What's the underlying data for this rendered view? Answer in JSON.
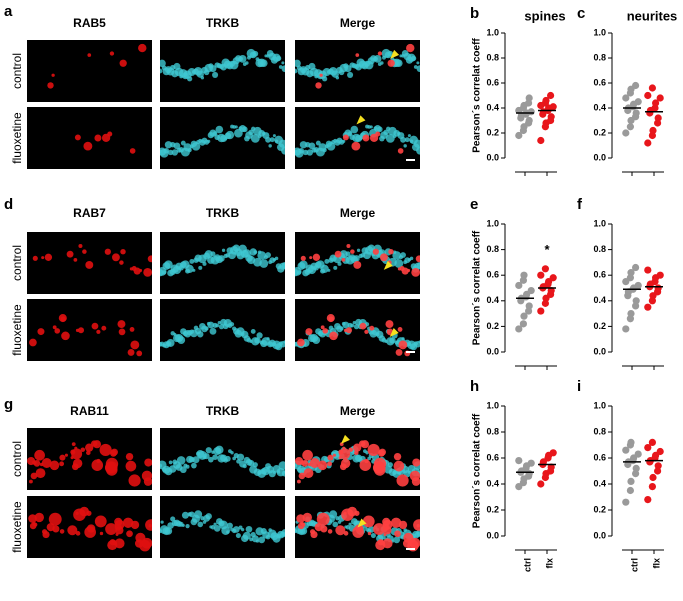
{
  "images": [
    {
      "letter": "a",
      "marker": "RAB5",
      "channel2": "TRKB",
      "merge": "Merge",
      "rows": [
        "control",
        "fluoxetine"
      ]
    },
    {
      "letter": "d",
      "marker": "RAB7",
      "channel2": "TRKB",
      "merge": "Merge",
      "rows": [
        "control",
        "fluoxetine"
      ]
    },
    {
      "letter": "g",
      "marker": "RAB11",
      "channel2": "TRKB",
      "merge": "Merge",
      "rows": [
        "control",
        "fluoxetine"
      ]
    }
  ],
  "charts": [
    {
      "letter": "b",
      "type": "scatter",
      "title": "spines",
      "ylabel": "Pearson´s correlat coeff",
      "categories": [
        null,
        null
      ],
      "ylim": [
        0,
        1
      ],
      "yticks": [
        {
          "value": 0,
          "label": "0.0"
        },
        {
          "value": 0.2,
          "label": "0.2"
        },
        {
          "value": 0.4,
          "label": "0.4"
        },
        {
          "value": 0.6,
          "label": "0.6"
        },
        {
          "value": 0.8,
          "label": "0.8"
        },
        {
          "value": 1,
          "label": "1.0"
        }
      ],
      "series": [
        {
          "color": "#9a9a9a",
          "median": 0.36,
          "values": [
            0.18,
            0.22,
            0.25,
            0.28,
            0.3,
            0.32,
            0.34,
            0.35,
            0.36,
            0.37,
            0.38,
            0.4,
            0.42,
            0.44,
            0.48
          ]
        },
        {
          "color": "#e8161b",
          "median": 0.38,
          "values": [
            0.14,
            0.25,
            0.28,
            0.3,
            0.33,
            0.35,
            0.37,
            0.38,
            0.4,
            0.41,
            0.42,
            0.44,
            0.46,
            0.5
          ]
        }
      ]
    },
    {
      "letter": "c",
      "type": "scatter",
      "title": "neurites",
      "categories": [
        null,
        null
      ],
      "ylim": [
        0,
        1
      ],
      "yticks": [
        {
          "value": 0,
          "label": "0.0"
        },
        {
          "value": 0.2,
          "label": "0.2"
        },
        {
          "value": 0.4,
          "label": "0.4"
        },
        {
          "value": 0.6,
          "label": "0.6"
        },
        {
          "value": 0.8,
          "label": "0.8"
        },
        {
          "value": 1,
          "label": "1.0"
        }
      ],
      "series": [
        {
          "color": "#9a9a9a",
          "median": 0.4,
          "values": [
            0.2,
            0.25,
            0.3,
            0.33,
            0.36,
            0.38,
            0.4,
            0.41,
            0.43,
            0.45,
            0.48,
            0.52,
            0.55,
            0.58
          ]
        },
        {
          "color": "#e8161b",
          "median": 0.37,
          "values": [
            0.12,
            0.18,
            0.22,
            0.28,
            0.32,
            0.36,
            0.38,
            0.4,
            0.44,
            0.48,
            0.5,
            0.56
          ]
        }
      ]
    },
    {
      "letter": "e",
      "type": "scatter",
      "ylabel": "Pearson´s correlat coeff",
      "annotation": "*",
      "categories": [
        null,
        null
      ],
      "ylim": [
        0,
        1
      ],
      "yticks": [
        {
          "value": 0,
          "label": "0.0"
        },
        {
          "value": 0.2,
          "label": "0.2"
        },
        {
          "value": 0.4,
          "label": "0.4"
        },
        {
          "value": 0.6,
          "label": "0.6"
        },
        {
          "value": 0.8,
          "label": "0.8"
        },
        {
          "value": 1,
          "label": "1.0"
        }
      ],
      "series": [
        {
          "color": "#9a9a9a",
          "median": 0.42,
          "values": [
            0.18,
            0.22,
            0.28,
            0.32,
            0.36,
            0.4,
            0.42,
            0.43,
            0.45,
            0.48,
            0.52,
            0.56,
            0.6
          ]
        },
        {
          "color": "#e8161b",
          "median": 0.5,
          "values": [
            0.32,
            0.38,
            0.42,
            0.45,
            0.48,
            0.5,
            0.51,
            0.53,
            0.55,
            0.58,
            0.6,
            0.65
          ]
        }
      ]
    },
    {
      "letter": "f",
      "type": "scatter",
      "categories": [
        null,
        null
      ],
      "ylim": [
        0,
        1
      ],
      "yticks": [
        {
          "value": 0,
          "label": "0.0"
        },
        {
          "value": 0.2,
          "label": "0.2"
        },
        {
          "value": 0.4,
          "label": "0.4"
        },
        {
          "value": 0.6,
          "label": "0.6"
        },
        {
          "value": 0.8,
          "label": "0.8"
        },
        {
          "value": 1,
          "label": "1.0"
        }
      ],
      "series": [
        {
          "color": "#9a9a9a",
          "median": 0.49,
          "values": [
            0.18,
            0.26,
            0.3,
            0.36,
            0.4,
            0.44,
            0.47,
            0.49,
            0.5,
            0.52,
            0.55,
            0.58,
            0.62,
            0.66
          ]
        },
        {
          "color": "#e8161b",
          "median": 0.51,
          "values": [
            0.35,
            0.4,
            0.44,
            0.47,
            0.5,
            0.51,
            0.53,
            0.55,
            0.58,
            0.6,
            0.64
          ]
        }
      ]
    },
    {
      "letter": "h",
      "type": "scatter",
      "ylabel": "Pearson´s correlat coeff",
      "categories": [
        "ctrl",
        "flx"
      ],
      "ylim": [
        0,
        1
      ],
      "yticks": [
        {
          "value": 0,
          "label": "0.0"
        },
        {
          "value": 0.2,
          "label": "0.2"
        },
        {
          "value": 0.4,
          "label": "0.4"
        },
        {
          "value": 0.6,
          "label": "0.6"
        },
        {
          "value": 0.8,
          "label": "0.8"
        },
        {
          "value": 1,
          "label": "1.0"
        }
      ],
      "series": [
        {
          "color": "#9a9a9a",
          "median": 0.49,
          "values": [
            0.38,
            0.41,
            0.44,
            0.46,
            0.48,
            0.49,
            0.5,
            0.52,
            0.54,
            0.56,
            0.58
          ]
        },
        {
          "color": "#e8161b",
          "median": 0.55,
          "values": [
            0.4,
            0.45,
            0.48,
            0.5,
            0.53,
            0.55,
            0.57,
            0.6,
            0.62,
            0.64
          ]
        }
      ]
    },
    {
      "letter": "i",
      "type": "scatter",
      "categories": [
        "ctrl",
        "flx"
      ],
      "ylim": [
        0,
        1
      ],
      "yticks": [
        {
          "value": 0,
          "label": "0.0"
        },
        {
          "value": 0.2,
          "label": "0.2"
        },
        {
          "value": 0.4,
          "label": "0.4"
        },
        {
          "value": 0.6,
          "label": "0.6"
        },
        {
          "value": 0.8,
          "label": "0.8"
        },
        {
          "value": 1,
          "label": "1.0"
        }
      ],
      "series": [
        {
          "color": "#9a9a9a",
          "median": 0.57,
          "values": [
            0.26,
            0.35,
            0.42,
            0.48,
            0.52,
            0.55,
            0.57,
            0.58,
            0.6,
            0.63,
            0.66,
            0.7,
            0.72
          ]
        },
        {
          "color": "#e8161b",
          "median": 0.58,
          "values": [
            0.28,
            0.38,
            0.45,
            0.5,
            0.54,
            0.57,
            0.58,
            0.6,
            0.62,
            0.65,
            0.68,
            0.72
          ]
        }
      ]
    }
  ]
}
